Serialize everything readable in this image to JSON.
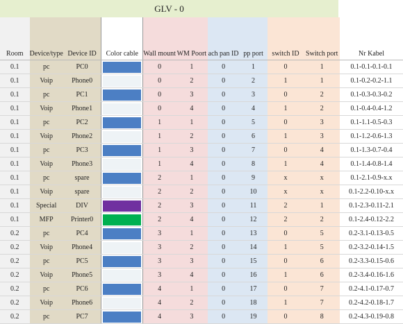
{
  "sheet": {
    "title": "GLV - 0"
  },
  "headers": {
    "room": "Room",
    "device_type": "Device/type",
    "device_id": "Device ID",
    "color_cable": "Color cable",
    "wall_mount": "Wall mount",
    "wm_poort": "WM Poort",
    "patch_pan_id": "ach pan ID",
    "pp_port": "pp port",
    "switch_id": "switch ID",
    "switch_port": "Switch port",
    "nr_kabel": "Nr Kabel"
  },
  "colors": {
    "blue": "#4c7fc4",
    "light_stripe": "#eef3f6",
    "purple": "#7030a0",
    "green": "#00b050"
  },
  "rows": [
    {
      "room": "0.1",
      "type": "pc",
      "id": "PC0",
      "color": "blue",
      "wm": "0",
      "wmp": "1",
      "pp": "0",
      "ppp": "1",
      "sw": "0",
      "swp": "1",
      "kabel": "0.1-0.1-0.1-0.1"
    },
    {
      "room": "0.1",
      "type": "Voip",
      "id": "Phone0",
      "color": "light_stripe",
      "wm": "0",
      "wmp": "2",
      "pp": "0",
      "ppp": "2",
      "sw": "1",
      "swp": "1",
      "kabel": "0.1-0.2-0.2-1.1"
    },
    {
      "room": "0.1",
      "type": "pc",
      "id": "PC1",
      "color": "blue",
      "wm": "0",
      "wmp": "3",
      "pp": "0",
      "ppp": "3",
      "sw": "0",
      "swp": "2",
      "kabel": "0.1-0.3-0.3-0.2"
    },
    {
      "room": "0.1",
      "type": "Voip",
      "id": "Phone1",
      "color": "light_stripe",
      "wm": "0",
      "wmp": "4",
      "pp": "0",
      "ppp": "4",
      "sw": "1",
      "swp": "2",
      "kabel": "0.1-0.4-0.4-1.2"
    },
    {
      "room": "0.1",
      "type": "pc",
      "id": "PC2",
      "color": "blue",
      "wm": "1",
      "wmp": "1",
      "pp": "0",
      "ppp": "5",
      "sw": "0",
      "swp": "3",
      "kabel": "0.1-1.1-0.5-0.3"
    },
    {
      "room": "0.1",
      "type": "Voip",
      "id": "Phone2",
      "color": "light_stripe",
      "wm": "1",
      "wmp": "2",
      "pp": "0",
      "ppp": "6",
      "sw": "1",
      "swp": "3",
      "kabel": "0.1-1.2-0.6-1.3"
    },
    {
      "room": "0.1",
      "type": "pc",
      "id": "PC3",
      "color": "blue",
      "wm": "1",
      "wmp": "3",
      "pp": "0",
      "ppp": "7",
      "sw": "0",
      "swp": "4",
      "kabel": "0.1-1.3-0.7-0.4"
    },
    {
      "room": "0.1",
      "type": "Voip",
      "id": "Phone3",
      "color": "light_stripe",
      "wm": "1",
      "wmp": "4",
      "pp": "0",
      "ppp": "8",
      "sw": "1",
      "swp": "4",
      "kabel": "0.1-1.4-0.8-1.4"
    },
    {
      "room": "0.1",
      "type": "pc",
      "id": "spare",
      "color": "blue",
      "wm": "2",
      "wmp": "1",
      "pp": "0",
      "ppp": "9",
      "sw": "x",
      "swp": "x",
      "kabel": "0.1-2.1-0.9-x.x"
    },
    {
      "room": "0.1",
      "type": "Voip",
      "id": "spare",
      "color": "light_stripe",
      "wm": "2",
      "wmp": "2",
      "pp": "0",
      "ppp": "10",
      "sw": "x",
      "swp": "x",
      "kabel": "0.1-2.2-0.10-x.x"
    },
    {
      "room": "0.1",
      "type": "Special",
      "id": "DIV",
      "color": "purple",
      "wm": "2",
      "wmp": "3",
      "pp": "0",
      "ppp": "11",
      "sw": "2",
      "swp": "1",
      "kabel": "0.1-2.3-0.11-2.1"
    },
    {
      "room": "0.1",
      "type": "MFP",
      "id": "Printer0",
      "color": "green",
      "wm": "2",
      "wmp": "4",
      "pp": "0",
      "ppp": "12",
      "sw": "2",
      "swp": "2",
      "kabel": "0.1-2.4-0.12-2.2"
    },
    {
      "room": "0.2",
      "type": "pc",
      "id": "PC4",
      "color": "blue",
      "wm": "3",
      "wmp": "1",
      "pp": "0",
      "ppp": "13",
      "sw": "0",
      "swp": "5",
      "kabel": "0.2-3.1-0.13-0.5"
    },
    {
      "room": "0.2",
      "type": "Voip",
      "id": "Phone4",
      "color": "light_stripe",
      "wm": "3",
      "wmp": "2",
      "pp": "0",
      "ppp": "14",
      "sw": "1",
      "swp": "5",
      "kabel": "0.2-3.2-0.14-1.5"
    },
    {
      "room": "0.2",
      "type": "pc",
      "id": "PC5",
      "color": "blue",
      "wm": "3",
      "wmp": "3",
      "pp": "0",
      "ppp": "15",
      "sw": "0",
      "swp": "6",
      "kabel": "0.2-3.3-0.15-0.6"
    },
    {
      "room": "0.2",
      "type": "Voip",
      "id": "Phone5",
      "color": "light_stripe",
      "wm": "3",
      "wmp": "4",
      "pp": "0",
      "ppp": "16",
      "sw": "1",
      "swp": "6",
      "kabel": "0.2-3.4-0.16-1.6"
    },
    {
      "room": "0.2",
      "type": "pc",
      "id": "PC6",
      "color": "blue",
      "wm": "4",
      "wmp": "1",
      "pp": "0",
      "ppp": "17",
      "sw": "0",
      "swp": "7",
      "kabel": "0.2-4.1-0.17-0.7"
    },
    {
      "room": "0.2",
      "type": "Voip",
      "id": "Phone6",
      "color": "light_stripe",
      "wm": "4",
      "wmp": "2",
      "pp": "0",
      "ppp": "18",
      "sw": "1",
      "swp": "7",
      "kabel": "0.2-4.2-0.18-1.7"
    },
    {
      "room": "0.2",
      "type": "pc",
      "id": "PC7",
      "color": "blue",
      "wm": "4",
      "wmp": "3",
      "pp": "0",
      "ppp": "19",
      "sw": "0",
      "swp": "8",
      "kabel": "0.2-4.3-0.19-0.8"
    }
  ]
}
